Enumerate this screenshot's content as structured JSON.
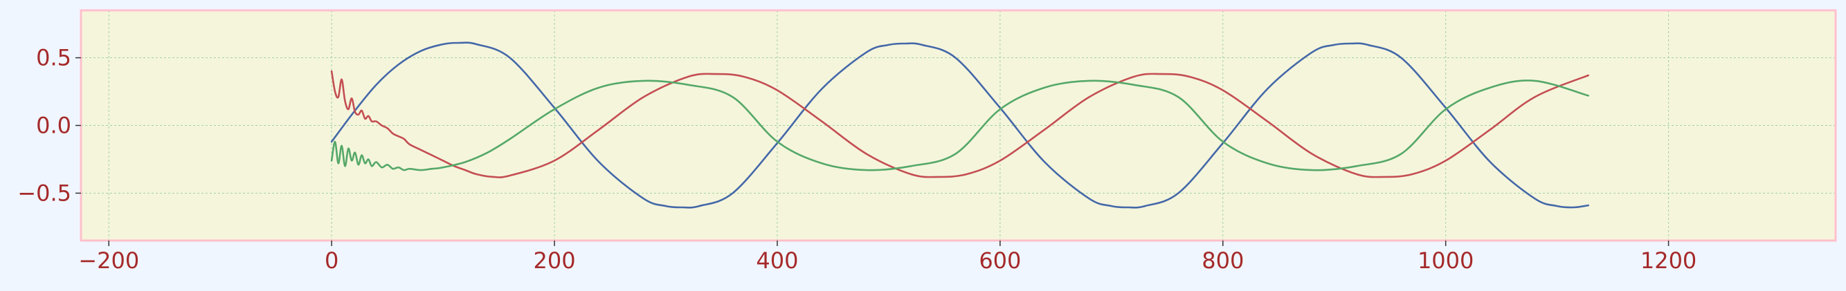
{
  "chart_data": {
    "type": "line",
    "title": "",
    "xlabel": "",
    "ylabel": "",
    "xlim": [
      -225,
      1350
    ],
    "ylim": [
      -0.85,
      0.85
    ],
    "x_ticks": [
      -200,
      0,
      200,
      400,
      600,
      800,
      1000,
      1200
    ],
    "x_tick_labels": [
      "−200",
      "0",
      "200",
      "400",
      "600",
      "800",
      "1000",
      "1200"
    ],
    "y_ticks": [
      -0.5,
      0.0,
      0.5
    ],
    "y_tick_labels": [
      "−0.5",
      "0.0",
      "0.5"
    ],
    "grid": true,
    "legend": "none",
    "colors": {
      "figure_background": "#f0f6ff",
      "plot_background": "#f5f5dc",
      "frame": "#ffc0cb",
      "grid": "#9fd39f",
      "tick_label": "#a52a2a"
    },
    "series": [
      {
        "color": "#4468a8",
        "x": [
          0,
          20,
          40,
          60,
          80,
          100,
          115,
          130,
          160,
          200,
          240,
          280,
          300,
          315,
          330,
          360,
          400,
          440,
          480,
          500,
          515,
          530,
          560,
          600,
          640,
          680,
          700,
          715,
          730,
          760,
          800,
          840,
          880,
          900,
          915,
          930,
          960,
          1000,
          1040,
          1080,
          1100,
          1115,
          1128
        ],
        "y": [
          -0.12,
          0.1,
          0.3,
          0.45,
          0.55,
          0.6,
          0.61,
          0.6,
          0.5,
          0.13,
          -0.27,
          -0.54,
          -0.595,
          -0.605,
          -0.595,
          -0.5,
          -0.13,
          0.27,
          0.54,
          0.595,
          0.605,
          0.595,
          0.5,
          0.13,
          -0.27,
          -0.54,
          -0.595,
          -0.605,
          -0.595,
          -0.5,
          -0.13,
          0.27,
          0.54,
          0.595,
          0.605,
          0.595,
          0.5,
          0.13,
          -0.27,
          -0.54,
          -0.595,
          -0.605,
          -0.59
        ]
      },
      {
        "color": "#c44e52",
        "x": [
          0,
          3,
          6,
          9,
          12,
          15,
          18,
          21,
          24,
          27,
          30,
          33,
          36,
          40,
          45,
          50,
          55,
          60,
          65,
          70,
          80,
          90,
          100,
          110,
          120,
          130,
          145,
          160,
          200,
          240,
          280,
          320,
          345,
          370,
          400,
          440,
          480,
          520,
          545,
          570,
          600,
          640,
          680,
          720,
          745,
          770,
          800,
          840,
          880,
          920,
          945,
          970,
          1000,
          1040,
          1080,
          1128
        ],
        "y": [
          0.4,
          0.25,
          0.21,
          0.34,
          0.18,
          0.12,
          0.2,
          0.1,
          0.08,
          0.11,
          0.05,
          0.07,
          0.03,
          0.03,
          0.0,
          -0.02,
          -0.06,
          -0.08,
          -0.1,
          -0.14,
          -0.18,
          -0.22,
          -0.26,
          -0.3,
          -0.33,
          -0.36,
          -0.38,
          -0.37,
          -0.26,
          -0.03,
          0.21,
          0.36,
          0.38,
          0.36,
          0.26,
          0.03,
          -0.21,
          -0.36,
          -0.38,
          -0.36,
          -0.26,
          -0.03,
          0.21,
          0.36,
          0.38,
          0.36,
          0.26,
          0.03,
          -0.21,
          -0.36,
          -0.38,
          -0.36,
          -0.26,
          -0.03,
          0.21,
          0.37
        ]
      },
      {
        "color": "#55a868",
        "x": [
          0,
          3,
          6,
          9,
          12,
          15,
          18,
          21,
          24,
          27,
          30,
          33,
          36,
          40,
          45,
          50,
          55,
          60,
          65,
          70,
          80,
          90,
          100,
          120,
          140,
          160,
          200,
          240,
          280,
          320,
          360,
          400,
          440,
          480,
          520,
          560,
          600,
          640,
          680,
          720,
          760,
          800,
          840,
          880,
          920,
          960,
          1000,
          1040,
          1080,
          1128
        ],
        "y": [
          -0.26,
          -0.12,
          -0.28,
          -0.15,
          -0.3,
          -0.17,
          -0.26,
          -0.2,
          -0.29,
          -0.22,
          -0.28,
          -0.25,
          -0.3,
          -0.27,
          -0.31,
          -0.29,
          -0.32,
          -0.31,
          -0.33,
          -0.32,
          -0.33,
          -0.32,
          -0.31,
          -0.27,
          -0.2,
          -0.1,
          0.12,
          0.28,
          0.33,
          0.3,
          0.21,
          -0.12,
          -0.28,
          -0.33,
          -0.3,
          -0.21,
          0.12,
          0.28,
          0.33,
          0.3,
          0.21,
          -0.12,
          -0.28,
          -0.33,
          -0.3,
          -0.21,
          0.12,
          0.28,
          0.33,
          0.22
        ]
      }
    ]
  }
}
